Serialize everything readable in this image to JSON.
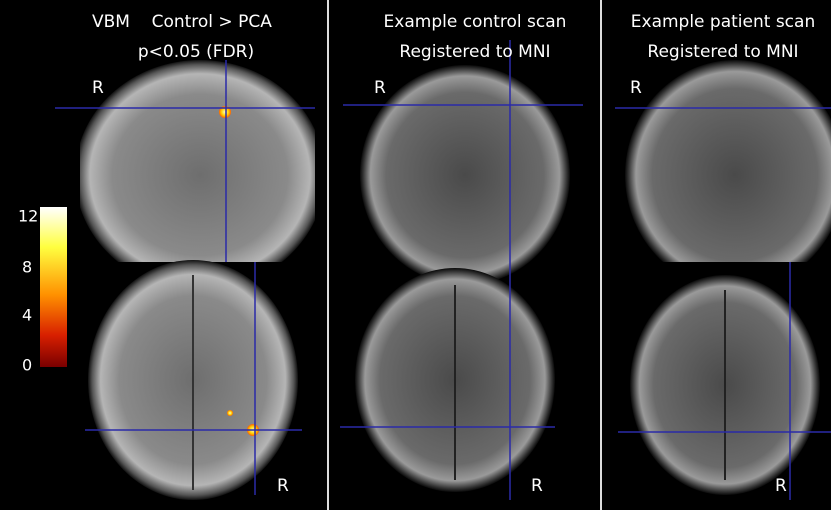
{
  "panels": [
    {
      "title": [
        "VBM    Control > PCA",
        "p<0.05 (FDR)"
      ],
      "labels": [
        "R",
        "R"
      ]
    },
    {
      "title": [
        "Example control scan",
        "Registered to MNI"
      ],
      "labels": [
        "R",
        "R"
      ]
    },
    {
      "title": [
        "Example patient scan",
        "Registered to MNI"
      ],
      "labels": [
        "R",
        "R"
      ]
    }
  ],
  "colorbar": {
    "ticks": [
      12,
      8,
      4,
      0
    ]
  }
}
